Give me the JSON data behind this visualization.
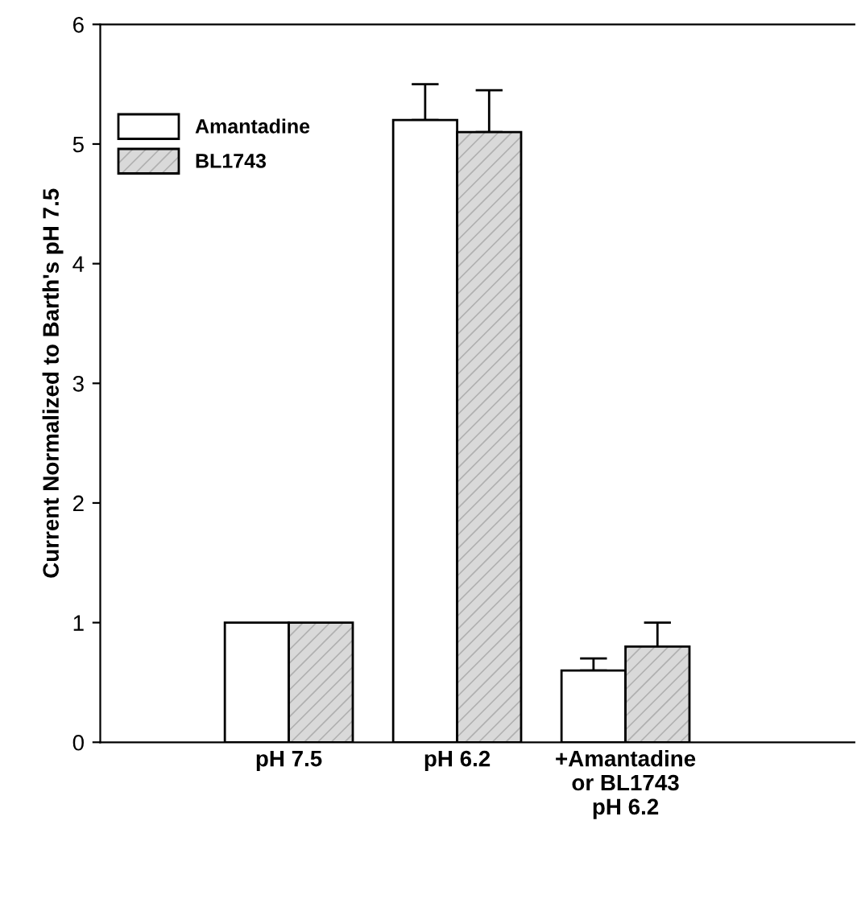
{
  "chart_data": {
    "type": "bar",
    "ylabel": "Current Normalized to Barth's pH 7.5",
    "categories": [
      "pH 7.5",
      "pH 6.2",
      "+Amantadine\nor BL1743\npH 6.2"
    ],
    "series": [
      {
        "name": "Amantadine",
        "color": "#ffffff",
        "values": [
          1.0,
          5.2,
          0.6
        ],
        "errors": [
          null,
          [
            5.2,
            5.5
          ],
          [
            0.6,
            0.7
          ]
        ]
      },
      {
        "name": "BL1743",
        "color": "#d9d9d9",
        "values": [
          1.0,
          5.1,
          0.8
        ],
        "errors": [
          null,
          [
            5.1,
            5.45
          ],
          [
            0.8,
            1.0
          ]
        ]
      }
    ],
    "ylim": [
      0,
      6
    ],
    "yticks": [
      0,
      1,
      2,
      3,
      4,
      5,
      6
    ],
    "grid": false,
    "legend": "top left"
  }
}
